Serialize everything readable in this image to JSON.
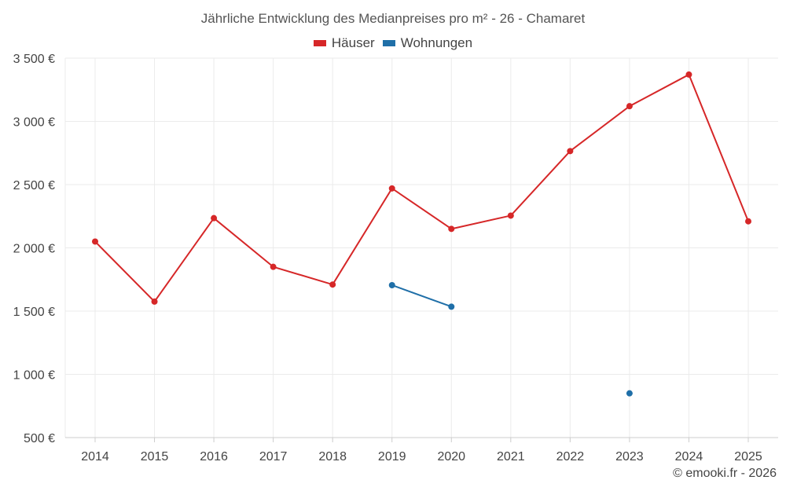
{
  "chart_data": {
    "type": "line",
    "title": "Jährliche Entwicklung des Medianpreises pro m² - 26 - Chamaret",
    "categories": [
      "2014",
      "2015",
      "2016",
      "2017",
      "2018",
      "2019",
      "2020",
      "2021",
      "2022",
      "2023",
      "2024",
      "2025"
    ],
    "y_ticks": [
      500,
      1000,
      1500,
      2000,
      2500,
      3000,
      3500
    ],
    "y_tick_labels": [
      "500 €",
      "1 000 €",
      "1 500 €",
      "2 000 €",
      "2 500 €",
      "3 000 €",
      "3 500 €"
    ],
    "ylim": [
      500,
      3500
    ],
    "grid": true,
    "legend_position": "top-center",
    "series": [
      {
        "name": "Häuser",
        "color": "#d62728",
        "values": [
          2050,
          1575,
          2235,
          1850,
          1710,
          2470,
          2150,
          2255,
          2765,
          3120,
          3370,
          2210
        ]
      },
      {
        "name": "Wohnungen",
        "color": "#1f6fa8",
        "values": [
          null,
          null,
          null,
          null,
          null,
          1705,
          1535,
          null,
          null,
          850,
          null,
          null
        ]
      }
    ]
  },
  "credit": "© emooki.fr - 2026"
}
